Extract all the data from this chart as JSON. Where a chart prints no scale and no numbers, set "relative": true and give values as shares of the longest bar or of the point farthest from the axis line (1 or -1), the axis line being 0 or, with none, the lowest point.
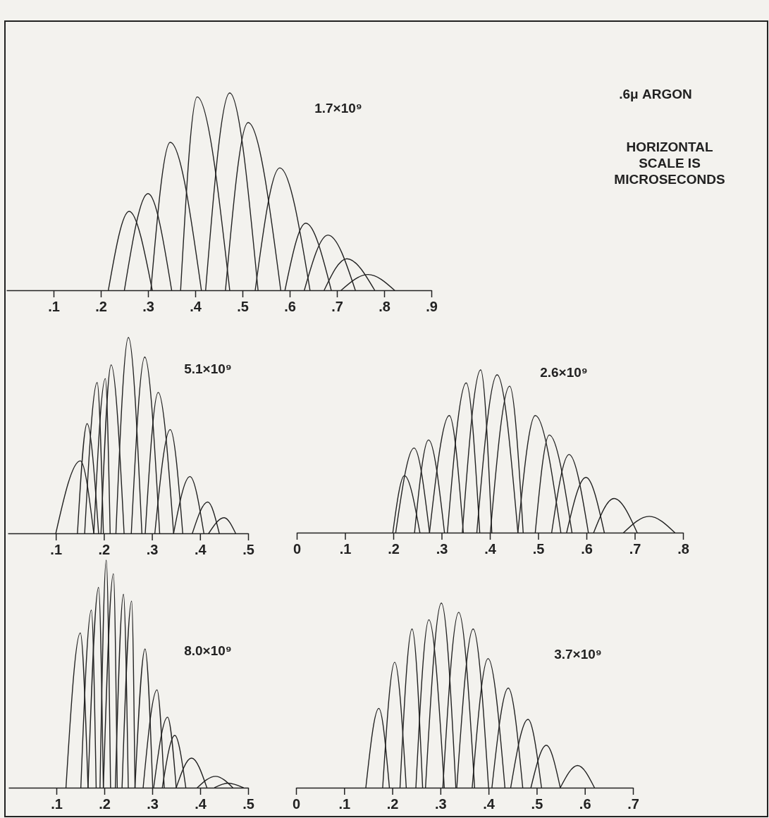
{
  "chart_data": [
    {
      "type": "line",
      "relative": true,
      "color": "#222222",
      "xlim": [
        0,
        0.9
      ],
      "xticks": [
        {
          "value": 0.1,
          "label": ".1"
        },
        {
          "value": 0.2,
          "label": ".2"
        },
        {
          "value": 0.3,
          "label": ".3"
        },
        {
          "value": 0.4,
          "label": ".4"
        },
        {
          "value": 0.5,
          "label": ".5"
        },
        {
          "value": 0.6,
          "label": ".6"
        },
        {
          "value": 0.7,
          "label": ".7"
        },
        {
          "value": 0.8,
          "label": ".8"
        },
        {
          "value": 0.9,
          "label": ".9"
        }
      ],
      "annotations": [
        "1.7×10⁹",
        ".6μ ARGON",
        "HORIZONTAL SCALE IS MICROSECONDS"
      ],
      "series": [
        {
          "x": [
            0.216,
            0.26,
            0.309
          ],
          "values": [
            0,
            0.4,
            0
          ]
        },
        {
          "x": [
            0.25,
            0.3,
            0.35
          ],
          "values": [
            0,
            0.49,
            0
          ]
        },
        {
          "x": [
            0.306,
            0.347,
            0.413
          ],
          "values": [
            0,
            0.75,
            0
          ]
        },
        {
          "x": [
            0.369,
            0.404,
            0.473
          ],
          "values": [
            0,
            0.98,
            0
          ]
        },
        {
          "x": [
            0.422,
            0.473,
            0.533
          ],
          "values": [
            0,
            1,
            0
          ]
        },
        {
          "x": [
            0.464,
            0.512,
            0.581
          ],
          "values": [
            0,
            0.85,
            0
          ]
        },
        {
          "x": [
            0.527,
            0.579,
            0.643
          ],
          "values": [
            0,
            0.62,
            0
          ]
        },
        {
          "x": [
            0.59,
            0.634,
            0.688
          ],
          "values": [
            0,
            0.34,
            0
          ]
        },
        {
          "x": [
            0.631,
            0.681,
            0.739
          ],
          "values": [
            0,
            0.28,
            0
          ]
        },
        {
          "x": [
            0.673,
            0.721,
            0.78
          ],
          "values": [
            0,
            0.16,
            0
          ]
        },
        {
          "x": [
            0.709,
            0.766,
            0.822
          ],
          "values": [
            0,
            0.08,
            0
          ]
        }
      ]
    },
    {
      "type": "line",
      "relative": true,
      "color": "#222222",
      "xlim": [
        0,
        0.5
      ],
      "xticks": [
        {
          "value": 0.1,
          "label": ".1"
        },
        {
          "value": 0.2,
          "label": ".2"
        },
        {
          "value": 0.3,
          "label": ".3"
        },
        {
          "value": 0.4,
          "label": ".4"
        },
        {
          "value": 0.5,
          "label": ".5"
        }
      ],
      "annotations": [
        "5.1×10⁹"
      ],
      "series": [
        {
          "x": [
            0.1,
            0.151,
            0.179
          ],
          "values": [
            0,
            0.37,
            0
          ]
        },
        {
          "x": [
            0.145,
            0.165,
            0.189
          ],
          "values": [
            0,
            0.56,
            0
          ]
        },
        {
          "x": [
            0.16,
            0.186,
            0.199
          ],
          "values": [
            0,
            0.77,
            0
          ]
        },
        {
          "x": [
            0.179,
            0.203,
            0.213
          ],
          "values": [
            0,
            0.79,
            0
          ]
        },
        {
          "x": [
            0.194,
            0.215,
            0.242
          ],
          "values": [
            0,
            0.86,
            0
          ]
        },
        {
          "x": [
            0.225,
            0.251,
            0.279
          ],
          "values": [
            0,
            1,
            0
          ]
        },
        {
          "x": [
            0.257,
            0.285,
            0.316
          ],
          "values": [
            0,
            0.9,
            0
          ]
        },
        {
          "x": [
            0.286,
            0.313,
            0.345
          ],
          "values": [
            0,
            0.72,
            0
          ]
        },
        {
          "x": [
            0.306,
            0.338,
            0.364
          ],
          "values": [
            0,
            0.53,
            0
          ]
        },
        {
          "x": [
            0.345,
            0.379,
            0.408
          ],
          "values": [
            0,
            0.29,
            0
          ]
        },
        {
          "x": [
            0.384,
            0.416,
            0.44
          ],
          "values": [
            0,
            0.16,
            0
          ]
        },
        {
          "x": [
            0.418,
            0.45,
            0.474
          ],
          "values": [
            0,
            0.08,
            0
          ]
        }
      ]
    },
    {
      "type": "line",
      "relative": true,
      "color": "#222222",
      "xlim": [
        0,
        0.8
      ],
      "xticks": [
        0,
        {
          "value": 0.1,
          "label": ".1"
        },
        {
          "value": 0.2,
          "label": ".2"
        },
        {
          "value": 0.3,
          "label": ".3"
        },
        {
          "value": 0.4,
          "label": ".4"
        },
        {
          "value": 0.5,
          "label": ".5"
        },
        {
          "value": 0.6,
          "label": ".6"
        },
        {
          "value": 0.7,
          "label": ".7"
        },
        {
          "value": 0.8,
          "label": ".8"
        }
      ],
      "annotations": [
        "2.6×10⁹"
      ],
      "series": [
        {
          "x": [
            0.199,
            0.223,
            0.255
          ],
          "values": [
            0,
            0.35,
            0
          ]
        },
        {
          "x": [
            0.205,
            0.243,
            0.275
          ],
          "values": [
            0,
            0.52,
            0
          ]
        },
        {
          "x": [
            0.244,
            0.273,
            0.306
          ],
          "values": [
            0,
            0.57,
            0
          ]
        },
        {
          "x": [
            0.275,
            0.316,
            0.345
          ],
          "values": [
            0,
            0.72,
            0
          ]
        },
        {
          "x": [
            0.312,
            0.351,
            0.379
          ],
          "values": [
            0,
            0.92,
            0
          ]
        },
        {
          "x": [
            0.343,
            0.381,
            0.404
          ],
          "values": [
            0,
            1,
            0
          ]
        },
        {
          "x": [
            0.373,
            0.415,
            0.458
          ],
          "values": [
            0,
            0.97,
            0
          ]
        },
        {
          "x": [
            0.401,
            0.441,
            0.469
          ],
          "values": [
            0,
            0.9,
            0
          ]
        },
        {
          "x": [
            0.458,
            0.494,
            0.547
          ],
          "values": [
            0,
            0.72,
            0
          ]
        },
        {
          "x": [
            0.494,
            0.523,
            0.57
          ],
          "values": [
            0,
            0.6,
            0
          ]
        },
        {
          "x": [
            0.528,
            0.564,
            0.604
          ],
          "values": [
            0,
            0.48,
            0
          ]
        },
        {
          "x": [
            0.559,
            0.599,
            0.637
          ],
          "values": [
            0,
            0.34,
            0
          ]
        },
        {
          "x": [
            0.615,
            0.657,
            0.705
          ],
          "values": [
            0,
            0.21,
            0
          ]
        },
        {
          "x": [
            0.677,
            0.73,
            0.783
          ],
          "values": [
            0,
            0.1,
            0
          ]
        }
      ]
    },
    {
      "type": "line",
      "relative": true,
      "color": "#222222",
      "xlim": [
        0,
        0.5
      ],
      "xticks": [
        {
          "value": 0.1,
          "label": ".1"
        },
        {
          "value": 0.2,
          "label": ".2"
        },
        {
          "value": 0.3,
          "label": ".3"
        },
        {
          "value": 0.4,
          "label": ".4"
        },
        {
          "value": 0.5,
          "label": ".5"
        }
      ],
      "annotations": [
        "8.0×10⁹"
      ],
      "series": [
        {
          "x": [
            0.12,
            0.15,
            0.166
          ],
          "values": [
            0,
            0.68,
            0
          ]
        },
        {
          "x": [
            0.151,
            0.173,
            0.183
          ],
          "values": [
            0,
            0.78,
            0
          ]
        },
        {
          "x": [
            0.166,
            0.188,
            0.198
          ],
          "values": [
            0,
            0.88,
            0
          ]
        },
        {
          "x": [
            0.191,
            0.204,
            0.213
          ],
          "values": [
            0,
            1,
            0
          ]
        },
        {
          "x": [
            0.198,
            0.219,
            0.227
          ],
          "values": [
            0,
            0.94,
            0
          ]
        },
        {
          "x": [
            0.223,
            0.24,
            0.25
          ],
          "values": [
            0,
            0.85,
            0
          ]
        },
        {
          "x": [
            0.237,
            0.257,
            0.264
          ],
          "values": [
            0,
            0.82,
            0
          ]
        },
        {
          "x": [
            0.264,
            0.285,
            0.301
          ],
          "values": [
            0,
            0.61,
            0
          ]
        },
        {
          "x": [
            0.281,
            0.31,
            0.325
          ],
          "values": [
            0,
            0.43,
            0
          ]
        },
        {
          "x": [
            0.303,
            0.332,
            0.35
          ],
          "values": [
            0,
            0.31,
            0
          ]
        },
        {
          "x": [
            0.321,
            0.347,
            0.37
          ],
          "values": [
            0,
            0.23,
            0
          ]
        },
        {
          "x": [
            0.35,
            0.382,
            0.414
          ],
          "values": [
            0,
            0.13,
            0
          ]
        },
        {
          "x": [
            0.394,
            0.432,
            0.468
          ],
          "values": [
            0,
            0.05,
            0
          ]
        },
        {
          "x": [
            0.43,
            0.458,
            0.49
          ],
          "values": [
            0,
            0.02,
            0
          ]
        }
      ]
    },
    {
      "type": "line",
      "relative": true,
      "color": "#222222",
      "xlim": [
        0,
        0.7
      ],
      "xticks": [
        0,
        {
          "value": 0.1,
          "label": ".1"
        },
        {
          "value": 0.2,
          "label": ".2"
        },
        {
          "value": 0.3,
          "label": ".3"
        },
        {
          "value": 0.4,
          "label": ".4"
        },
        {
          "value": 0.5,
          "label": ".5"
        },
        {
          "value": 0.6,
          "label": ".6"
        },
        {
          "value": 0.7,
          "label": ".7"
        }
      ],
      "annotations": [
        "3.7×10⁹"
      ],
      "series": [
        {
          "x": [
            0.145,
            0.172,
            0.194
          ],
          "values": [
            0,
            0.43,
            0
          ]
        },
        {
          "x": [
            0.18,
            0.205,
            0.229
          ],
          "values": [
            0,
            0.68,
            0
          ]
        },
        {
          "x": [
            0.216,
            0.241,
            0.263
          ],
          "values": [
            0,
            0.86,
            0
          ]
        },
        {
          "x": [
            0.249,
            0.276,
            0.308
          ],
          "values": [
            0,
            0.91,
            0
          ]
        },
        {
          "x": [
            0.269,
            0.302,
            0.332
          ],
          "values": [
            0,
            1,
            0
          ]
        },
        {
          "x": [
            0.305,
            0.338,
            0.371
          ],
          "values": [
            0,
            0.95,
            0
          ]
        },
        {
          "x": [
            0.334,
            0.368,
            0.4
          ],
          "values": [
            0,
            0.86,
            0
          ]
        },
        {
          "x": [
            0.366,
            0.399,
            0.434
          ],
          "values": [
            0,
            0.7,
            0
          ]
        },
        {
          "x": [
            0.407,
            0.441,
            0.471
          ],
          "values": [
            0,
            0.54,
            0
          ]
        },
        {
          "x": [
            0.446,
            0.482,
            0.51
          ],
          "values": [
            0,
            0.37,
            0
          ]
        },
        {
          "x": [
            0.488,
            0.52,
            0.549
          ],
          "values": [
            0,
            0.23,
            0
          ]
        },
        {
          "x": [
            0.549,
            0.585,
            0.62
          ],
          "values": [
            0,
            0.12,
            0
          ]
        }
      ]
    }
  ]
}
